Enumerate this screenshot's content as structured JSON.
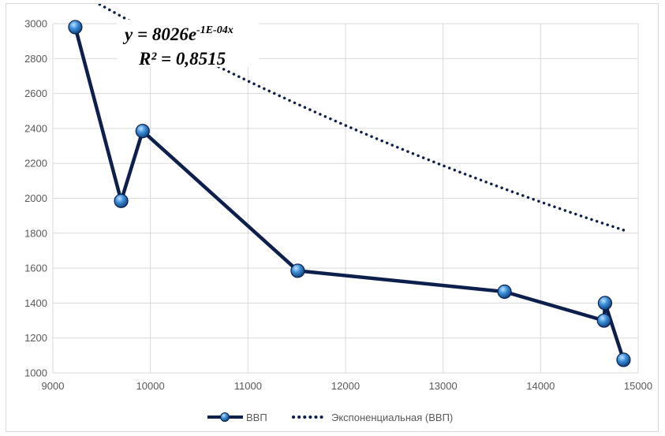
{
  "chart_data": {
    "type": "scatter",
    "title": "",
    "xlabel": "",
    "ylabel": "",
    "xlim": [
      9000,
      15000
    ],
    "ylim": [
      1000,
      3000
    ],
    "x_ticks": [
      9000,
      10000,
      11000,
      12000,
      13000,
      14000,
      15000
    ],
    "y_ticks": [
      1000,
      1200,
      1400,
      1600,
      1800,
      2000,
      2200,
      2400,
      2600,
      2800,
      3000
    ],
    "grid": true,
    "legend_position": "bottom",
    "series": [
      {
        "name": "ВВП",
        "mode": "lines+markers",
        "color": "#0d1f4c",
        "marker_color": "#2e75b6",
        "points": [
          {
            "x": 9230,
            "y": 2980
          },
          {
            "x": 9700,
            "y": 1985
          },
          {
            "x": 9920,
            "y": 2385
          },
          {
            "x": 11510,
            "y": 1585
          },
          {
            "x": 13630,
            "y": 1465
          },
          {
            "x": 14650,
            "y": 1300
          },
          {
            "x": 14660,
            "y": 1400
          },
          {
            "x": 14850,
            "y": 1075
          }
        ]
      },
      {
        "name": "Экспоненциальная (ВВП)",
        "mode": "dotted-trendline",
        "color": "#0d1f4c",
        "model": {
          "type": "exponential",
          "a": 8026,
          "b": -0.0001
        },
        "x_range": [
          9230,
          14850
        ]
      }
    ],
    "annotation": {
      "equation_main": "y = 8026e",
      "equation_exp": "-1E-04x",
      "r_squared": "R² = 0,8515"
    }
  }
}
